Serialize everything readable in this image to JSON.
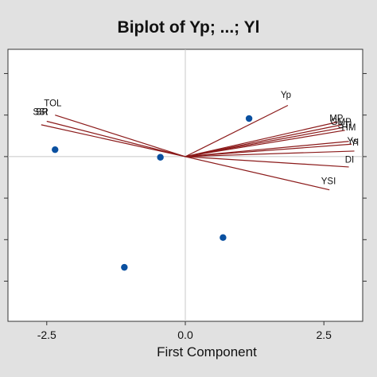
{
  "chart_data": {
    "type": "scatter",
    "title": "Biplot of Yp; ...; Yl",
    "xlabel": "First Component",
    "ylabel": "",
    "xlim": [
      -3.2,
      3.2
    ],
    "ylim": [
      -2.38,
      1.55
    ],
    "x_ticks": [
      -2.5,
      0.0,
      2.5
    ],
    "x_tick_labels": [
      "-2.5",
      "0.0",
      "2.5"
    ],
    "y_ticks": [
      1.2,
      0.6,
      0.0,
      -0.6,
      -1.2,
      -1.8
    ],
    "reference_lines": {
      "x": 0.0,
      "y": 0.0
    },
    "grid": false,
    "colors": {
      "background": "#e1e1e1",
      "plot_area": "#ffffff",
      "vectors": "#8b1a1a",
      "points": "#0a50a0",
      "reference_lines": "#c8c8c8"
    },
    "points": [
      {
        "x": 1.15,
        "y": 0.55
      },
      {
        "x": -2.35,
        "y": 0.1
      },
      {
        "x": -0.45,
        "y": -0.01
      },
      {
        "x": 0.68,
        "y": -1.17
      },
      {
        "x": -1.1,
        "y": -1.6
      }
    ],
    "loadings": [
      {
        "name": "Yp",
        "x": 1.85,
        "y": 0.74
      },
      {
        "name": "TOL",
        "x": -2.35,
        "y": 0.6
      },
      {
        "name": "SSI",
        "x": -2.5,
        "y": 0.51
      },
      {
        "name": "",
        "x": -2.6,
        "y": 0.46
      },
      {
        "name": "MP",
        "x": 2.75,
        "y": 0.5
      },
      {
        "name": "",
        "x": 2.82,
        "y": 0.46
      },
      {
        "name": "",
        "x": 2.85,
        "y": 0.42
      },
      {
        "name": "",
        "x": 2.88,
        "y": 0.38
      },
      {
        "name": "",
        "x": 2.95,
        "y": 0.22
      },
      {
        "name": "Ys",
        "x": 3.0,
        "y": 0.18
      },
      {
        "name": "",
        "x": 3.05,
        "y": 0.08
      },
      {
        "name": "DI",
        "x": 2.95,
        "y": -0.15
      },
      {
        "name": "YSI",
        "x": 2.6,
        "y": -0.48
      }
    ],
    "loading_labels": [
      {
        "text": "Yp",
        "x": 1.72,
        "y": 0.85
      },
      {
        "text": "TOL",
        "x": -2.55,
        "y": 0.73
      },
      {
        "text": "SSI",
        "x": -2.75,
        "y": 0.6
      },
      {
        "text": "SR",
        "x": -2.7,
        "y": 0.6
      },
      {
        "text": "MP",
        "x": 2.6,
        "y": 0.51
      },
      {
        "text": "GMP",
        "x": 2.62,
        "y": 0.46
      },
      {
        "text": "STI",
        "x": 2.75,
        "y": 0.41
      },
      {
        "text": "HM",
        "x": 2.82,
        "y": 0.38
      },
      {
        "text": "Ys",
        "x": 2.92,
        "y": 0.18
      },
      {
        "text": "Yl",
        "x": 2.98,
        "y": 0.16
      },
      {
        "text": "DI",
        "x": 2.88,
        "y": -0.09
      },
      {
        "text": "YSI",
        "x": 2.45,
        "y": -0.4
      }
    ]
  }
}
